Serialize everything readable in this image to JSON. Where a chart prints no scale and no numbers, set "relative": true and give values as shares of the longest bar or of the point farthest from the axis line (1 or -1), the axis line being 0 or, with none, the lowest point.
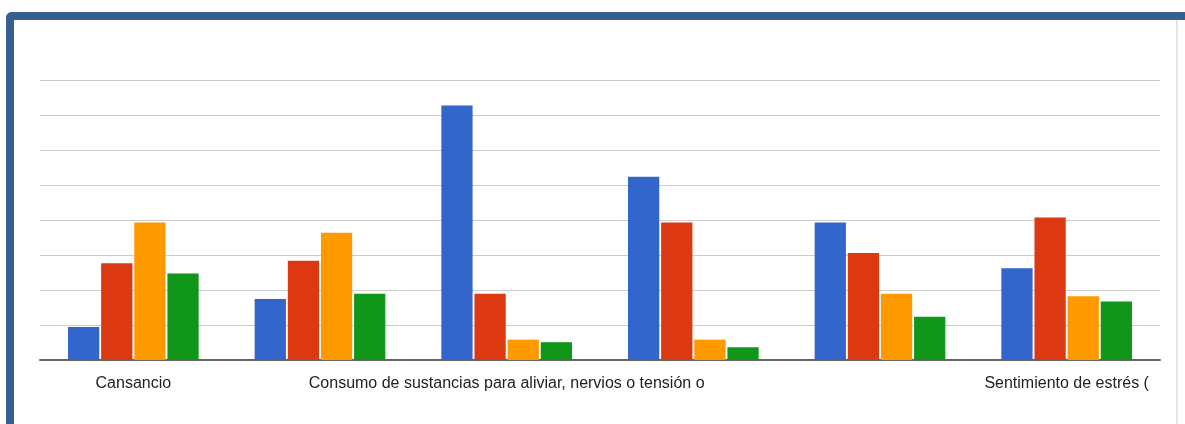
{
  "chart_data": {
    "type": "bar",
    "relative": true,
    "grid": true,
    "categories": [
      "Cansancio",
      null,
      "Consumo de sustancias para aliviar, nervios o tensión o",
      null,
      null,
      "Sentimiento de estrés ("
    ],
    "series": [
      {
        "color": "#3366cc",
        "values": [
          0.13,
          0.24,
          1,
          0.72,
          0.54,
          0.36
        ]
      },
      {
        "color": "#dc3912",
        "values": [
          0.38,
          0.39,
          0.26,
          0.54,
          0.42,
          0.56
        ]
      },
      {
        "color": "#ff9900",
        "values": [
          0.54,
          0.5,
          0.08,
          0.08,
          0.26,
          0.25
        ]
      },
      {
        "color": "#109618",
        "values": [
          0.34,
          0.26,
          0.07,
          0.05,
          0.17,
          0.23
        ]
      }
    ]
  }
}
